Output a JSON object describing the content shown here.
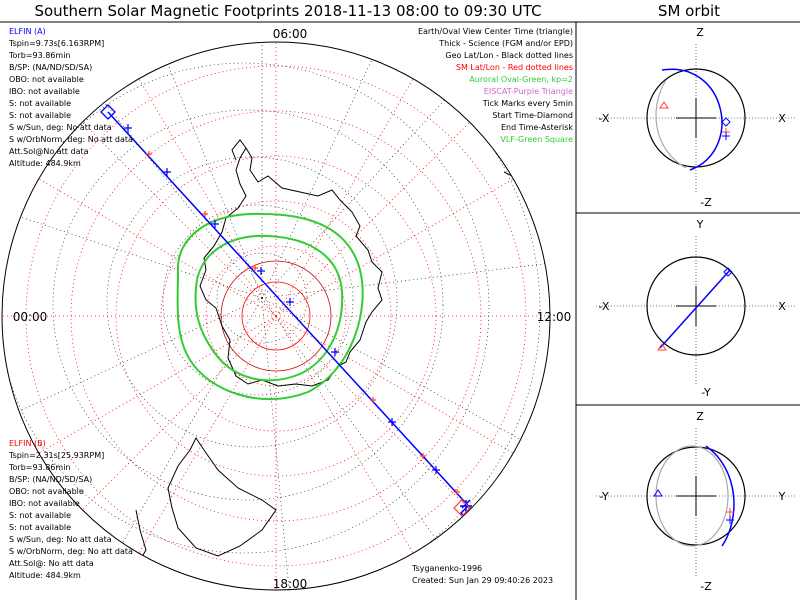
{
  "title": "Southern Solar Magnetic Footprints 2018-11-13 08:00 to 09:30 UTC",
  "orbit_title": "SM orbit",
  "colors": {
    "probe_a": "#0000ff",
    "probe_b": "#ff4040",
    "sm_grid": "#ff0000",
    "geo_grid": "#000000",
    "auroral_oval": "#33cc33",
    "eiscat": "#cc66cc",
    "vlf": "#33cc33",
    "orbit_path": "#aaaaaa"
  },
  "probe_a": {
    "name": "ELFIN (A)",
    "lines": [
      "Tspin=9.73s[6.163RPM]",
      "Torb=93.86min",
      "B/SP: (NA/ND/SD/SA)",
      "OBO: not available",
      "IBO: not available",
      "S: not available",
      "S: not available",
      "S w/Sun, deg: No att data",
      "S w/OrbNorm, deg: No att data",
      "Att.Sol@No att data",
      "Altitude: 484.9km"
    ]
  },
  "probe_b": {
    "name": "ELFIN (B)",
    "lines": [
      "Tspin=2.31s[25.93RPM]",
      "Torb=93.86min",
      "B/SP: (NA/ND/SD/SA)",
      "OBO: not available",
      "IBO: not available",
      "S: not available",
      "S: not available",
      "S w/Sun, deg: No att data",
      "S w/OrbNorm, deg: No att data",
      "Att.Sol@: No att data",
      "Altitude: 484.9km"
    ]
  },
  "legend": [
    {
      "text": "Earth/Oval View Center Time (triangle)",
      "color": "#000000"
    },
    {
      "text": "Thick - Science (FGM and/or EPD)",
      "color": "#000000"
    },
    {
      "text": "Geo Lat/Lon - Black dotted lines",
      "color": "#000000"
    },
    {
      "text": "SM Lat/Lon - Red dotted lines",
      "color": "#ff0000"
    },
    {
      "text": "Auroral Oval-Green, kp=2",
      "color": "#33cc33"
    },
    {
      "text": "EISCAT-Purple Triangle",
      "color": "#cc66cc"
    },
    {
      "text": "Tick Marks every 5min",
      "color": "#000000"
    },
    {
      "text": "Start Time-Diamond",
      "color": "#000000"
    },
    {
      "text": "End Time-Asterisk",
      "color": "#000000"
    },
    {
      "text": "VLF-Green Square",
      "color": "#33cc33"
    }
  ],
  "time_labels": {
    "top": "06:00",
    "left": "00:00",
    "right": "12:00",
    "bottom": "18:00"
  },
  "credits": {
    "author": "Tsyganenko-1996",
    "created": "Created: Sun Jan 29 09:40:26 2023"
  },
  "orbit_panels": [
    {
      "top": "Z",
      "bottom": "-Z",
      "left": "-X",
      "right": "X"
    },
    {
      "top": "Y",
      "bottom": "-Y",
      "left": "-X",
      "right": "X"
    },
    {
      "top": "Z",
      "bottom": "-Z",
      "left": "-Y",
      "right": "Y"
    }
  ]
}
